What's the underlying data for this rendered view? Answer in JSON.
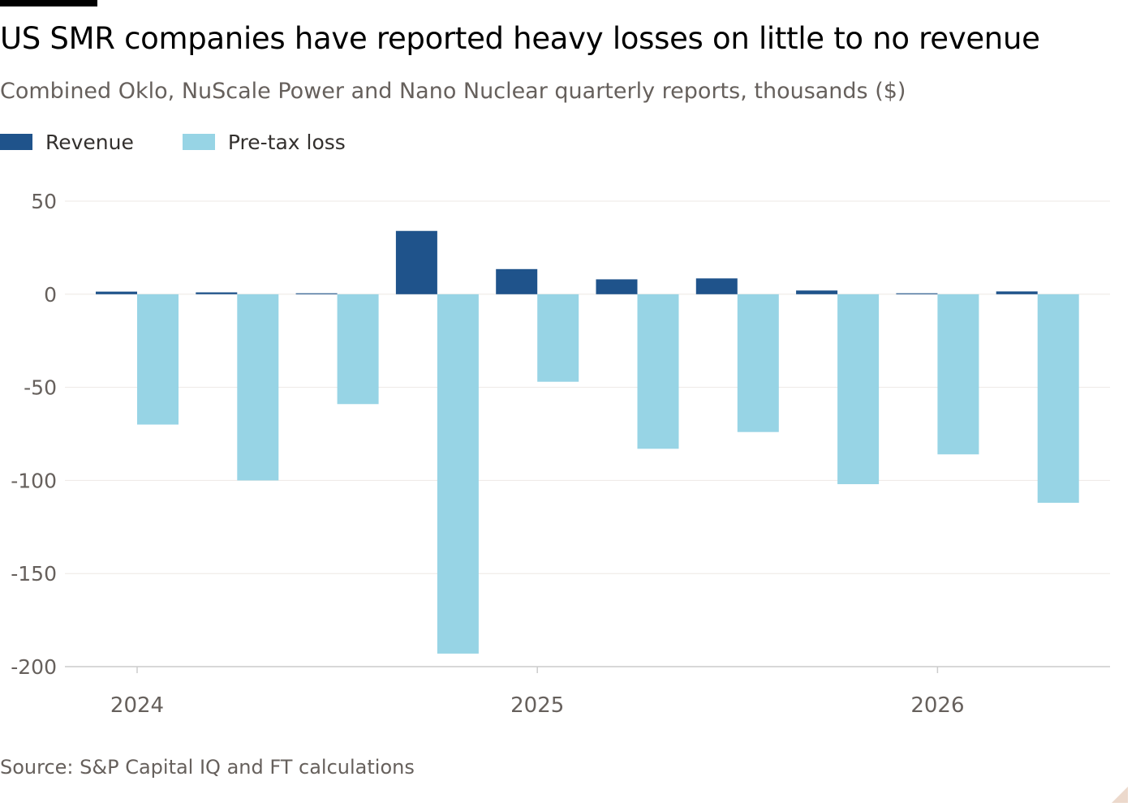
{
  "title": "US SMR companies have reported heavy losses on little to no revenue",
  "subtitle": "Combined Oklo, NuScale Power and Nano Nuclear quarterly reports, thousands ($)",
  "source": "Source: S&P Capital IQ and FT calculations",
  "colors": {
    "revenue": "#1f538b",
    "pretax_loss": "#97d4e5",
    "grid": "#ede8e4",
    "axis": "#cccccc",
    "text": "#66605c"
  },
  "chart_data": {
    "type": "bar",
    "categories": [
      "Q1 2024",
      "Q2 2024",
      "Q3 2024",
      "Q4 2024",
      "Q1 2025",
      "Q2 2025",
      "Q3 2025",
      "Q4 2025",
      "Q1 2026",
      "Q2 2026"
    ],
    "x_tick_labels": [
      "2024",
      "2025",
      "2026"
    ],
    "x_tick_positions": [
      0,
      4,
      8
    ],
    "series": [
      {
        "name": "Revenue",
        "values": [
          1.4,
          1.0,
          0.5,
          34,
          13.5,
          8,
          8.5,
          2,
          0.5,
          1.5
        ]
      },
      {
        "name": "Pre-tax loss",
        "values": [
          -70,
          -100,
          -59,
          -193,
          -47,
          -83,
          -74,
          -102,
          -86,
          -112
        ]
      }
    ],
    "y_ticks": [
      50,
      0,
      -50,
      -100,
      -150,
      -200
    ],
    "ylim": [
      -200,
      50
    ],
    "grid": true,
    "legend_position": "top-left",
    "xlabel": "",
    "ylabel": ""
  }
}
